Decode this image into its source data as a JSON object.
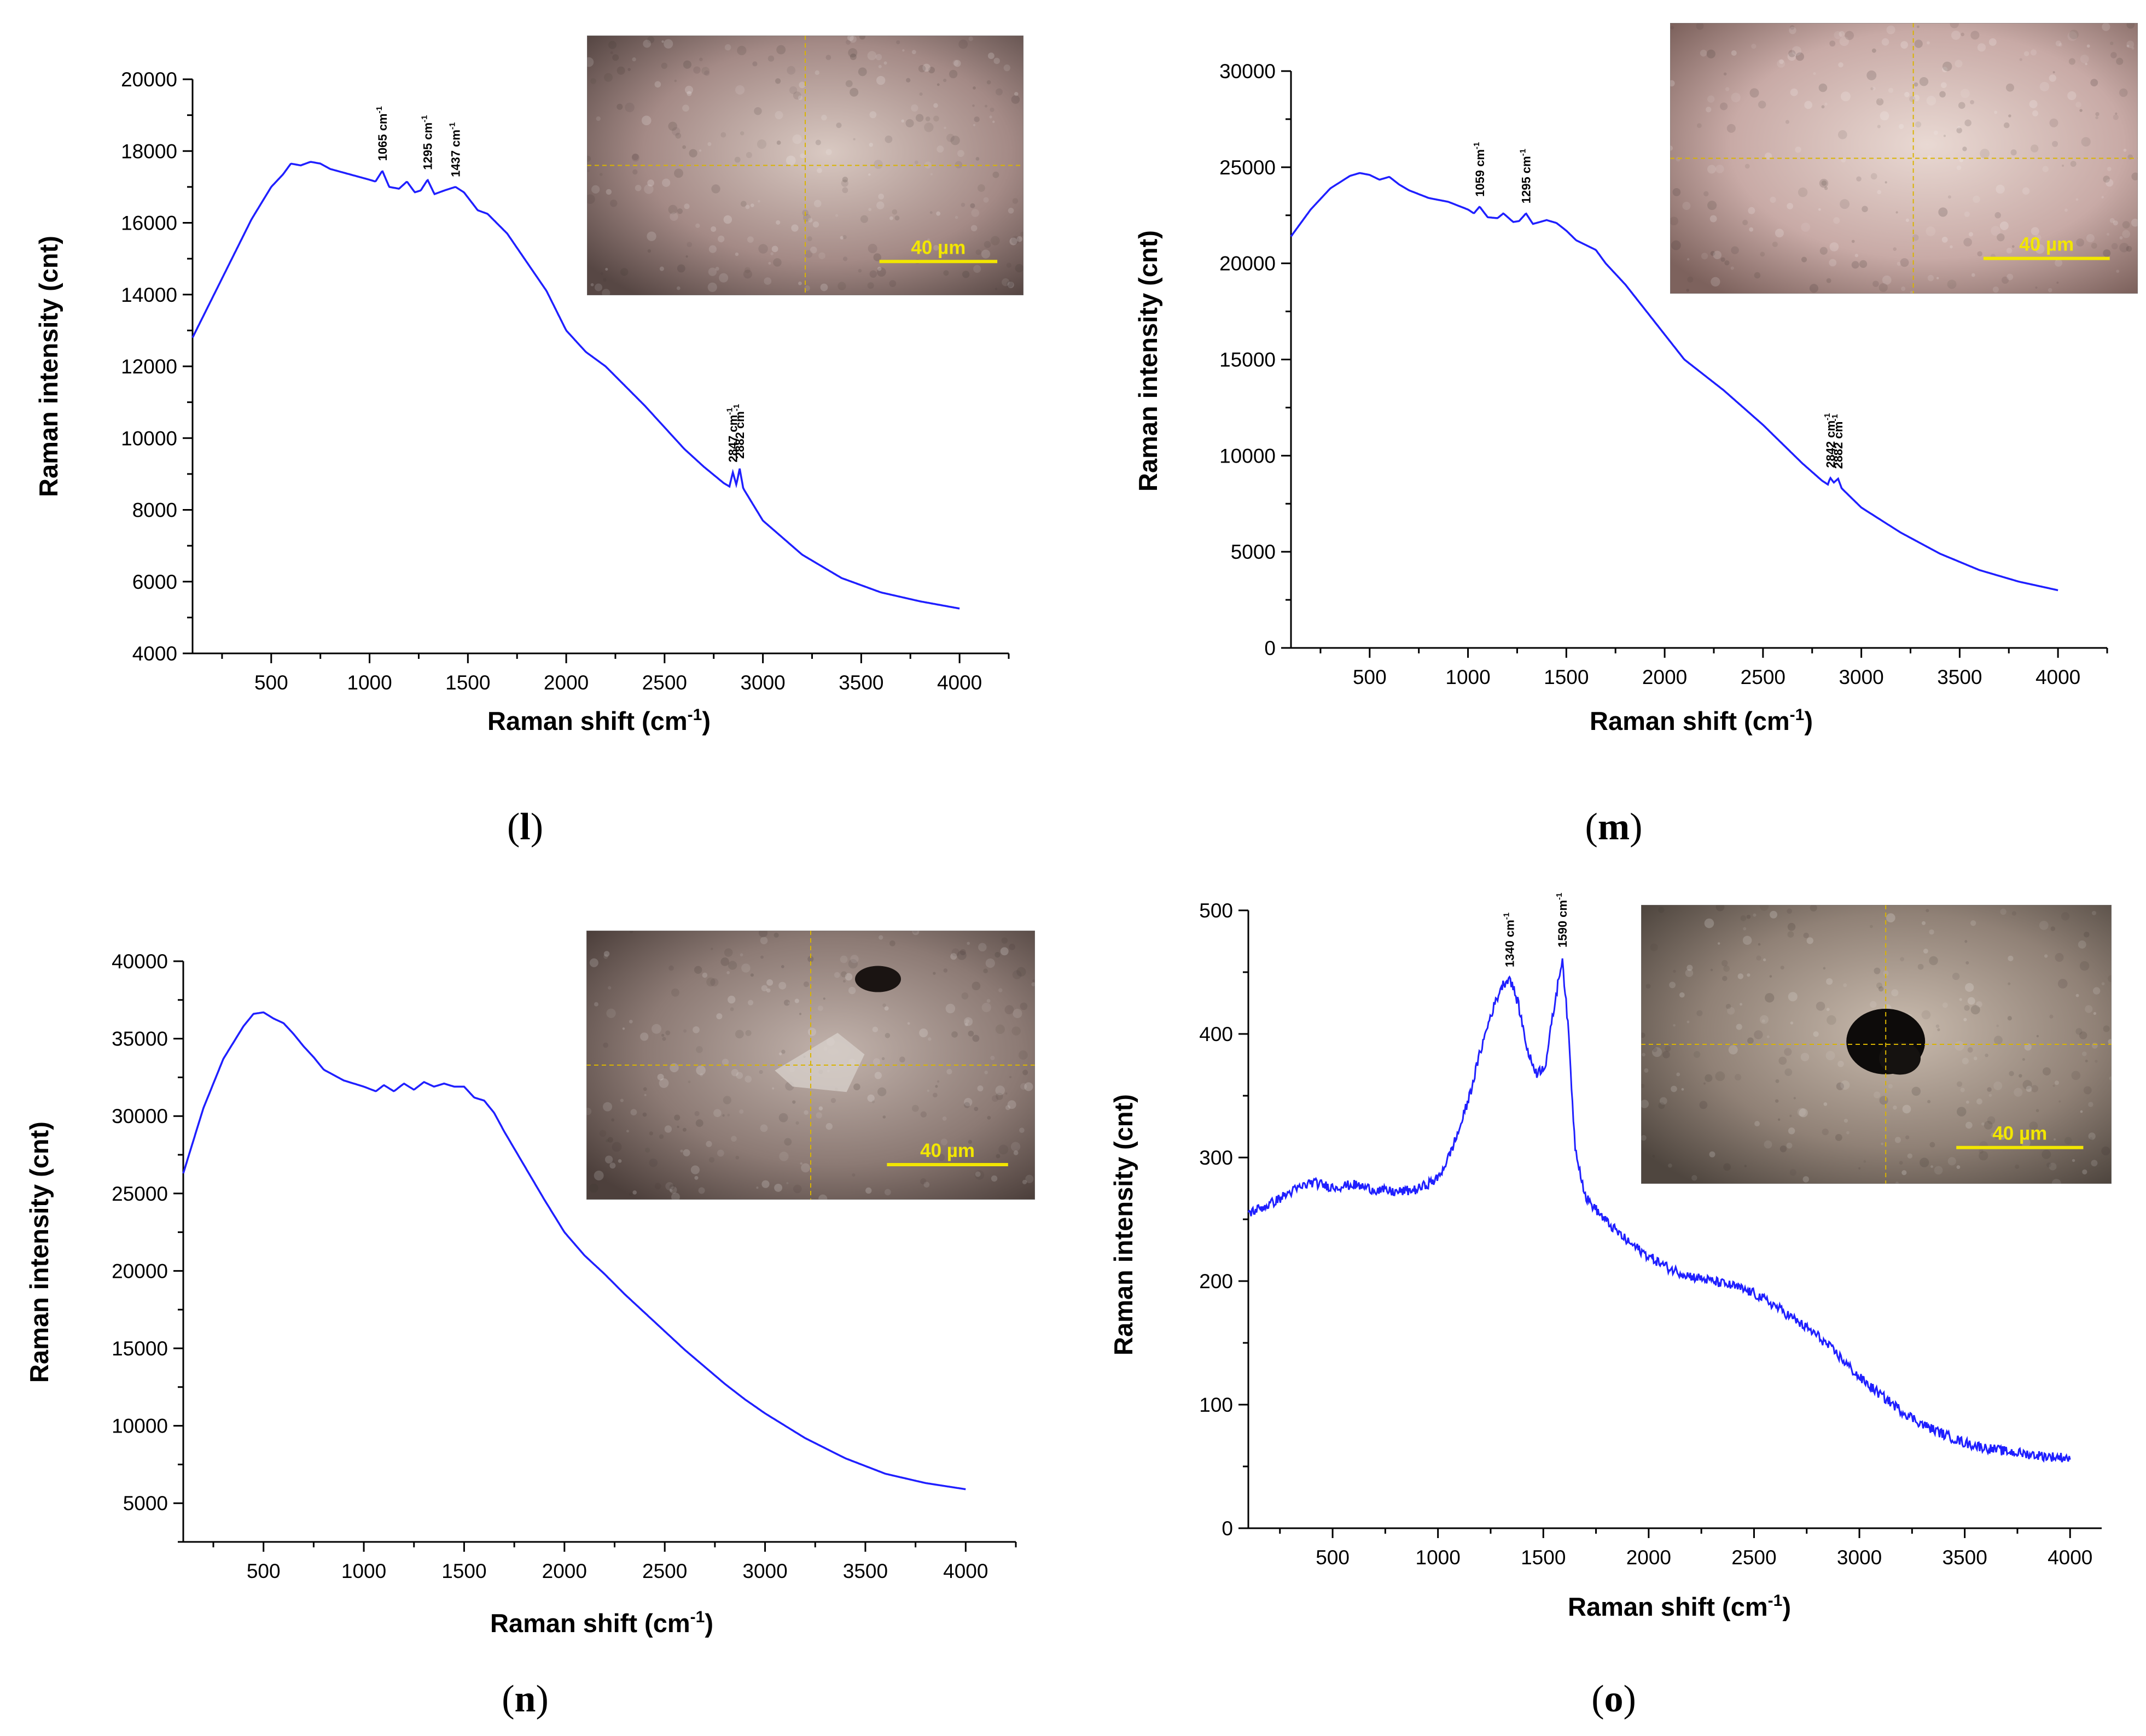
{
  "colors": {
    "series": "#1f1fff",
    "scale_bar": "#f2e600",
    "crosshair": "#d9b400",
    "axis": "#000000"
  },
  "chart_data": [
    {
      "id": "l",
      "type": "line",
      "panel_label": "l",
      "xlabel": "Raman shift (cm-1)",
      "xlabel_main": "Raman shift (cm",
      "xlabel_sup": "-1",
      "xlabel_close": ")",
      "ylabel": "Raman intensity (cnt)",
      "xlim": [
        100,
        4250
      ],
      "ylim": [
        4000,
        20000
      ],
      "xticks": [
        500,
        1000,
        1500,
        2000,
        2500,
        3000,
        3500,
        4000
      ],
      "yticks": [
        4000,
        6000,
        8000,
        10000,
        12000,
        14000,
        16000,
        18000,
        20000
      ],
      "series": [
        {
          "name": "spectrum l",
          "noise": 0,
          "points": [
            [
              100,
              12800
            ],
            [
              200,
              13900
            ],
            [
              300,
              15000
            ],
            [
              400,
              16100
            ],
            [
              500,
              17000
            ],
            [
              560,
              17350
            ],
            [
              600,
              17650
            ],
            [
              650,
              17600
            ],
            [
              700,
              17700
            ],
            [
              750,
              17650
            ],
            [
              800,
              17500
            ],
            [
              900,
              17350
            ],
            [
              1000,
              17200
            ],
            [
              1030,
              17150
            ],
            [
              1065,
              17450
            ],
            [
              1100,
              17000
            ],
            [
              1150,
              16950
            ],
            [
              1190,
              17150
            ],
            [
              1230,
              16850
            ],
            [
              1260,
              16900
            ],
            [
              1295,
              17200
            ],
            [
              1330,
              16800
            ],
            [
              1380,
              16900
            ],
            [
              1437,
              17000
            ],
            [
              1480,
              16850
            ],
            [
              1550,
              16350
            ],
            [
              1600,
              16250
            ],
            [
              1700,
              15700
            ],
            [
              1800,
              14900
            ],
            [
              1900,
              14100
            ],
            [
              2000,
              13000
            ],
            [
              2100,
              12400
            ],
            [
              2200,
              12000
            ],
            [
              2300,
              11450
            ],
            [
              2400,
              10900
            ],
            [
              2500,
              10300
            ],
            [
              2600,
              9700
            ],
            [
              2700,
              9200
            ],
            [
              2800,
              8750
            ],
            [
              2830,
              8650
            ],
            [
              2847,
              9050
            ],
            [
              2865,
              8700
            ],
            [
              2882,
              9150
            ],
            [
              2900,
              8600
            ],
            [
              3000,
              7700
            ],
            [
              3200,
              6750
            ],
            [
              3400,
              6100
            ],
            [
              3600,
              5700
            ],
            [
              3800,
              5450
            ],
            [
              4000,
              5250
            ]
          ]
        }
      ],
      "annotations": [
        {
          "x": 1065,
          "y": 17450,
          "text": "1065 cm",
          "sup": "-1"
        },
        {
          "x": 1295,
          "y": 17200,
          "text": "1295 cm",
          "sup": "-1"
        },
        {
          "x": 1437,
          "y": 17000,
          "text": "1437 cm",
          "sup": "-1"
        },
        {
          "x": 2847,
          "y": 9050,
          "text": "2847 cm",
          "sup": "-1"
        },
        {
          "x": 2882,
          "y": 9150,
          "text": "2882 cm",
          "sup": "-1"
        }
      ],
      "inset": {
        "scale_text": "40 µm",
        "tone": "#a48a86",
        "tone_light": "#d9c9c2",
        "tone_dark": "#574744"
      }
    },
    {
      "id": "m",
      "type": "line",
      "panel_label": "m",
      "xlabel": "Raman shift (cm-1)",
      "xlabel_main": "Raman shift (cm",
      "xlabel_sup": "-1",
      "xlabel_close": ")",
      "ylabel": "Raman intensity (cnt)",
      "xlim": [
        100,
        4250
      ],
      "ylim": [
        0,
        30000
      ],
      "xticks": [
        500,
        1000,
        1500,
        2000,
        2500,
        3000,
        3500,
        4000
      ],
      "yticks": [
        0,
        5000,
        10000,
        15000,
        20000,
        25000,
        30000
      ],
      "series": [
        {
          "name": "spectrum m",
          "noise": 0,
          "points": [
            [
              100,
              21400
            ],
            [
              200,
              22800
            ],
            [
              300,
              23900
            ],
            [
              400,
              24550
            ],
            [
              450,
              24700
            ],
            [
              500,
              24600
            ],
            [
              550,
              24350
            ],
            [
              600,
              24500
            ],
            [
              650,
              24100
            ],
            [
              700,
              23800
            ],
            [
              800,
              23400
            ],
            [
              900,
              23200
            ],
            [
              1000,
              22800
            ],
            [
              1030,
              22600
            ],
            [
              1059,
              22950
            ],
            [
              1100,
              22400
            ],
            [
              1150,
              22350
            ],
            [
              1180,
              22600
            ],
            [
              1230,
              22150
            ],
            [
              1260,
              22200
            ],
            [
              1295,
              22600
            ],
            [
              1330,
              22050
            ],
            [
              1400,
              22250
            ],
            [
              1450,
              22100
            ],
            [
              1500,
              21700
            ],
            [
              1550,
              21200
            ],
            [
              1650,
              20700
            ],
            [
              1700,
              20000
            ],
            [
              1800,
              18900
            ],
            [
              1900,
              17600
            ],
            [
              2000,
              16300
            ],
            [
              2100,
              15000
            ],
            [
              2200,
              14200
            ],
            [
              2300,
              13400
            ],
            [
              2400,
              12500
            ],
            [
              2500,
              11600
            ],
            [
              2600,
              10600
            ],
            [
              2700,
              9600
            ],
            [
              2800,
              8700
            ],
            [
              2830,
              8500
            ],
            [
              2842,
              8850
            ],
            [
              2860,
              8600
            ],
            [
              2882,
              8800
            ],
            [
              2900,
              8300
            ],
            [
              3000,
              7300
            ],
            [
              3200,
              6000
            ],
            [
              3400,
              4900
            ],
            [
              3600,
              4050
            ],
            [
              3800,
              3450
            ],
            [
              4000,
              3000
            ]
          ]
        }
      ],
      "annotations": [
        {
          "x": 1059,
          "y": 22950,
          "text": "1059 cm",
          "sup": "-1"
        },
        {
          "x": 1295,
          "y": 22600,
          "text": "1295 cm",
          "sup": "-1"
        },
        {
          "x": 2842,
          "y": 8850,
          "text": "2842 cm",
          "sup": "-1"
        },
        {
          "x": 2882,
          "y": 8800,
          "text": "2882 cm",
          "sup": "-1"
        }
      ],
      "inset": {
        "scale_text": "40 µm",
        "tone": "#c8aaa6",
        "tone_light": "#e9d9d3",
        "tone_dark": "#7d625d"
      }
    },
    {
      "id": "n",
      "type": "line",
      "panel_label": "n",
      "xlabel": "Raman shift (cm-1)",
      "xlabel_main": "Raman shift (cm",
      "xlabel_sup": "-1",
      "xlabel_close": ")",
      "ylabel": "Raman intensity (cnt)",
      "xlim": [
        100,
        4250
      ],
      "ylim": [
        2500,
        40000
      ],
      "xticks": [
        500,
        1000,
        1500,
        2000,
        2500,
        3000,
        3500,
        4000
      ],
      "yticks": [
        5000,
        10000,
        15000,
        20000,
        25000,
        30000,
        35000,
        40000
      ],
      "series": [
        {
          "name": "spectrum n",
          "noise": 0,
          "points": [
            [
              100,
              26300
            ],
            [
              200,
              30500
            ],
            [
              300,
              33700
            ],
            [
              400,
              35800
            ],
            [
              450,
              36600
            ],
            [
              500,
              36700
            ],
            [
              550,
              36300
            ],
            [
              600,
              36000
            ],
            [
              650,
              35300
            ],
            [
              700,
              34500
            ],
            [
              750,
              33800
            ],
            [
              800,
              33000
            ],
            [
              900,
              32300
            ],
            [
              1000,
              31900
            ],
            [
              1060,
              31600
            ],
            [
              1100,
              32000
            ],
            [
              1150,
              31600
            ],
            [
              1200,
              32100
            ],
            [
              1250,
              31700
            ],
            [
              1300,
              32200
            ],
            [
              1350,
              31900
            ],
            [
              1400,
              32100
            ],
            [
              1450,
              31900
            ],
            [
              1500,
              31900
            ],
            [
              1550,
              31200
            ],
            [
              1600,
              31000
            ],
            [
              1650,
              30200
            ],
            [
              1700,
              29000
            ],
            [
              1800,
              26800
            ],
            [
              1900,
              24600
            ],
            [
              2000,
              22500
            ],
            [
              2100,
              21000
            ],
            [
              2200,
              19800
            ],
            [
              2300,
              18500
            ],
            [
              2400,
              17300
            ],
            [
              2500,
              16100
            ],
            [
              2600,
              14900
            ],
            [
              2700,
              13800
            ],
            [
              2800,
              12700
            ],
            [
              2900,
              11700
            ],
            [
              3000,
              10800
            ],
            [
              3200,
              9200
            ],
            [
              3400,
              7900
            ],
            [
              3600,
              6900
            ],
            [
              3800,
              6300
            ],
            [
              4000,
              5900
            ]
          ]
        }
      ],
      "annotations": [],
      "inset": {
        "scale_text": "40 µm",
        "tone": "#8c7a74",
        "tone_light": "#c2b3ac",
        "tone_dark": "#4d403c"
      }
    },
    {
      "id": "o",
      "type": "line",
      "panel_label": "o",
      "xlabel": "Raman shift (cm-1)",
      "xlabel_main": "Raman shift (cm",
      "xlabel_sup": "-1",
      "xlabel_close": ")",
      "ylabel": "Raman intensity (cnt)",
      "xlim": [
        100,
        4150
      ],
      "ylim": [
        0,
        500
      ],
      "xticks": [
        500,
        1000,
        1500,
        2000,
        2500,
        3000,
        3500,
        4000
      ],
      "yticks": [
        0,
        100,
        200,
        300,
        400,
        500
      ],
      "series": [
        {
          "name": "spectrum o",
          "noise": 4,
          "points": [
            [
              100,
              255
            ],
            [
              200,
              262
            ],
            [
              300,
              272
            ],
            [
              400,
              280
            ],
            [
              500,
              276
            ],
            [
              600,
              278
            ],
            [
              700,
              274
            ],
            [
              800,
              272
            ],
            [
              900,
              274
            ],
            [
              1000,
              283
            ],
            [
              1050,
              300
            ],
            [
              1100,
              322
            ],
            [
              1150,
              350
            ],
            [
              1200,
              385
            ],
            [
              1250,
              415
            ],
            [
              1300,
              438
            ],
            [
              1340,
              446
            ],
            [
              1380,
              425
            ],
            [
              1430,
              383
            ],
            [
              1470,
              368
            ],
            [
              1510,
              375
            ],
            [
              1550,
              420
            ],
            [
              1590,
              462
            ],
            [
              1620,
              400
            ],
            [
              1650,
              310
            ],
            [
              1700,
              268
            ],
            [
              1800,
              248
            ],
            [
              1900,
              232
            ],
            [
              2000,
              220
            ],
            [
              2100,
              210
            ],
            [
              2200,
              204
            ],
            [
              2300,
              200
            ],
            [
              2400,
              196
            ],
            [
              2500,
              190
            ],
            [
              2600,
              180
            ],
            [
              2700,
              168
            ],
            [
              2800,
              156
            ],
            [
              2900,
              140
            ],
            [
              3000,
              122
            ],
            [
              3100,
              108
            ],
            [
              3200,
              95
            ],
            [
              3300,
              84
            ],
            [
              3400,
              76
            ],
            [
              3500,
              69
            ],
            [
              3600,
              65
            ],
            [
              3700,
              62
            ],
            [
              3800,
              60
            ],
            [
              3900,
              58
            ],
            [
              4000,
              57
            ]
          ]
        }
      ],
      "annotations": [
        {
          "x": 1340,
          "y": 446,
          "text": "1340 cm",
          "sup": "-1"
        },
        {
          "x": 1590,
          "y": 462,
          "text": "1590 cm",
          "sup": "-1"
        }
      ],
      "inset": {
        "scale_text": "40 µm",
        "tone": "#908176",
        "tone_light": "#c9bbae",
        "tone_dark": "#4f463f"
      }
    }
  ]
}
